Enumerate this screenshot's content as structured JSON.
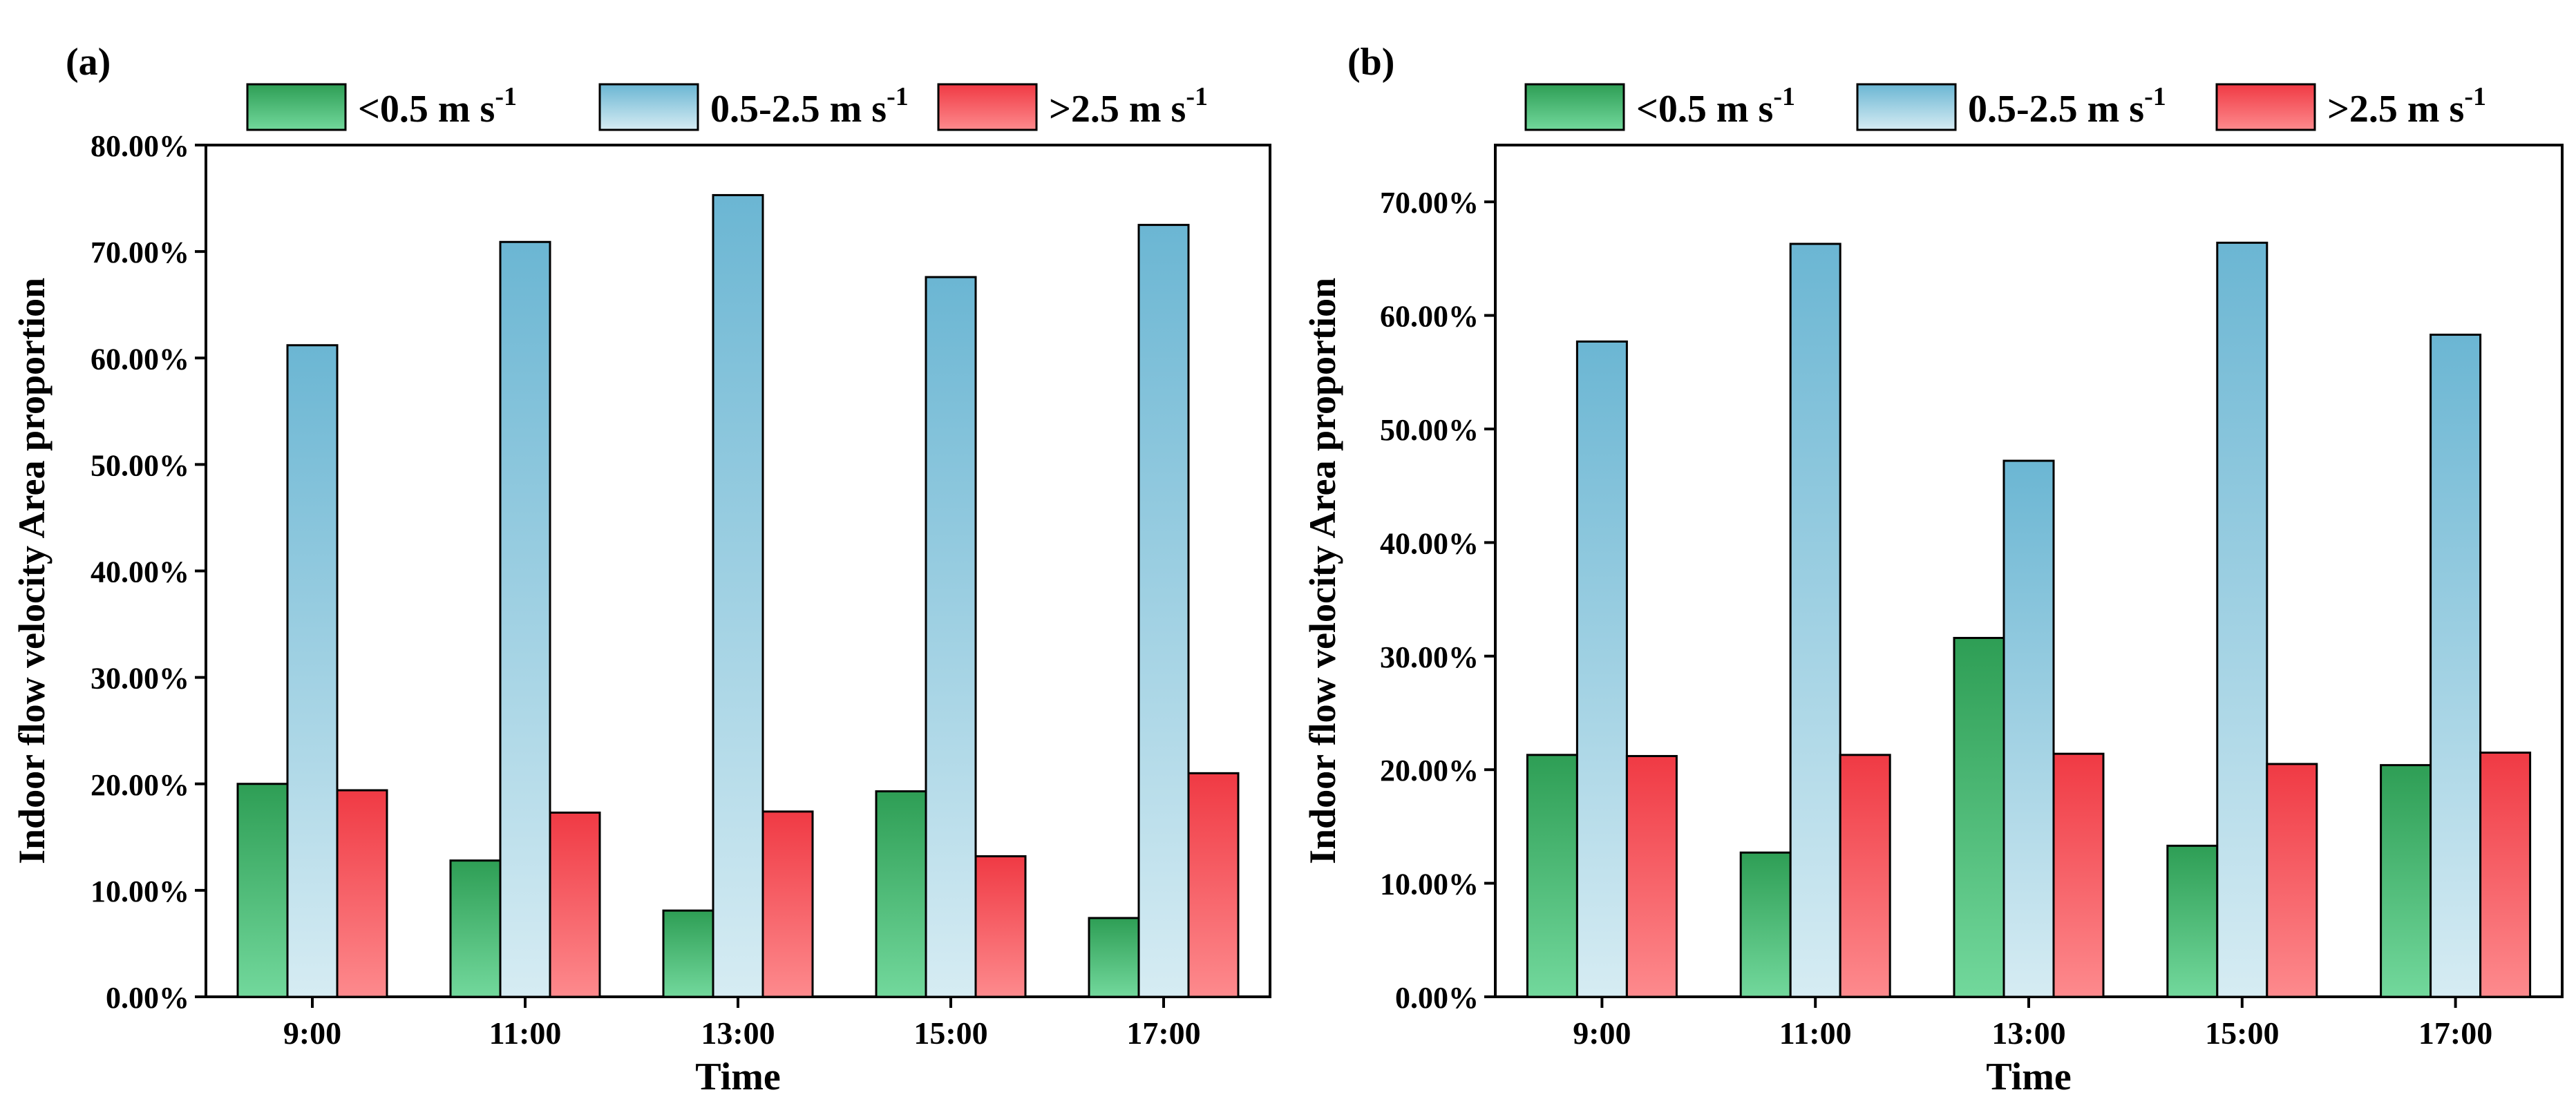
{
  "chart_data": [
    {
      "type": "bar",
      "panel_label": "(a)",
      "categories": [
        "9:00",
        "11:00",
        "13:00",
        "15:00",
        "17:00"
      ],
      "series": [
        {
          "name": "<0.5 m s-1",
          "legend_main": "<0.5 m s",
          "legend_sup": "-1",
          "color_top": "#2e9e55",
          "color_bottom": "#72d89c",
          "values": [
            20.0,
            12.8,
            8.1,
            19.3,
            7.4
          ]
        },
        {
          "name": "0.5-2.5 m s-1",
          "legend_main": "0.5-2.5 m s",
          "legend_sup": "-1",
          "color_top": "#6bb6d3",
          "color_bottom": "#d6ecf3",
          "values": [
            61.2,
            70.9,
            75.3,
            67.6,
            72.5
          ]
        },
        {
          "name": ">2.5 m s-1",
          "legend_main": ">2.5 m s",
          "legend_sup": "-1",
          "color_top": "#f03a44",
          "color_bottom": "#fd8a8d",
          "values": [
            19.4,
            17.3,
            17.4,
            13.2,
            21.0
          ]
        }
      ],
      "xlabel": "Time",
      "ylabel": "Indoor flow velocity Area proportion",
      "ylim": [
        0,
        80
      ],
      "yticks": [
        0,
        10,
        20,
        30,
        40,
        50,
        60,
        70,
        80
      ],
      "ytick_labels": [
        "0.00%",
        "10.00%",
        "20.00%",
        "30.00%",
        "40.00%",
        "50.00%",
        "60.00%",
        "70.00%",
        "80.00%"
      ],
      "legend_position": "top"
    },
    {
      "type": "bar",
      "panel_label": "(b)",
      "categories": [
        "9:00",
        "11:00",
        "13:00",
        "15:00",
        "17:00"
      ],
      "series": [
        {
          "name": "<0.5 m s-1",
          "legend_main": "<0.5 m s",
          "legend_sup": "-1",
          "color_top": "#2e9e55",
          "color_bottom": "#72d89c",
          "values": [
            21.3,
            12.7,
            31.6,
            13.3,
            20.4
          ]
        },
        {
          "name": "0.5-2.5 m s-1",
          "legend_main": "0.5-2.5 m s",
          "legend_sup": "-1",
          "color_top": "#6bb6d3",
          "color_bottom": "#d6ecf3",
          "values": [
            57.7,
            66.3,
            47.2,
            66.4,
            58.3
          ]
        },
        {
          "name": ">2.5 m s-1",
          "legend_main": ">2.5 m s",
          "legend_sup": "-1",
          "color_top": "#f03a44",
          "color_bottom": "#fd8a8d",
          "values": [
            21.2,
            21.3,
            21.4,
            20.5,
            21.5
          ]
        }
      ],
      "xlabel": "Time",
      "ylabel": "Indoor flow velocity Area proportion",
      "ylim": [
        0,
        75
      ],
      "yticks": [
        0,
        10,
        20,
        30,
        40,
        50,
        60,
        70
      ],
      "ytick_labels": [
        "0.00%",
        "10.00%",
        "20.00%",
        "30.00%",
        "40.00%",
        "50.00%",
        "60.00%",
        "70.00%"
      ],
      "legend_position": "top"
    }
  ]
}
